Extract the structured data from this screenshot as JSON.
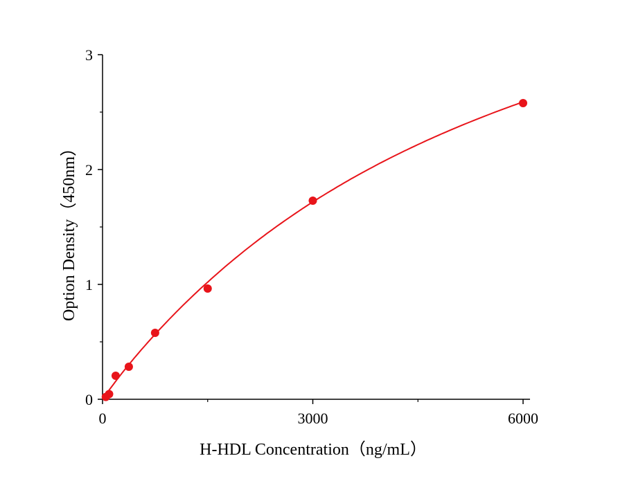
{
  "chart_data": {
    "type": "scatter",
    "title": "",
    "xlabel": "H-HDL Concentration（ng/mL）",
    "ylabel": "Option Density（450nm）",
    "xlim": [
      0,
      6100
    ],
    "ylim": [
      0,
      3
    ],
    "x_ticks": [
      0,
      3000,
      6000
    ],
    "y_ticks": [
      0,
      1,
      2,
      3
    ],
    "grid": false,
    "legend": "none",
    "point_color": "#e8141a",
    "curve_color": "#e8141a",
    "series": [
      {
        "x": [
          46.9,
          93.75,
          187.5,
          375,
          750,
          1500,
          3000,
          6000
        ],
        "y": [
          0.02,
          0.045,
          0.205,
          0.283,
          0.578,
          0.964,
          1.729,
          2.578
        ]
      }
    ],
    "fit_curve": true
  }
}
